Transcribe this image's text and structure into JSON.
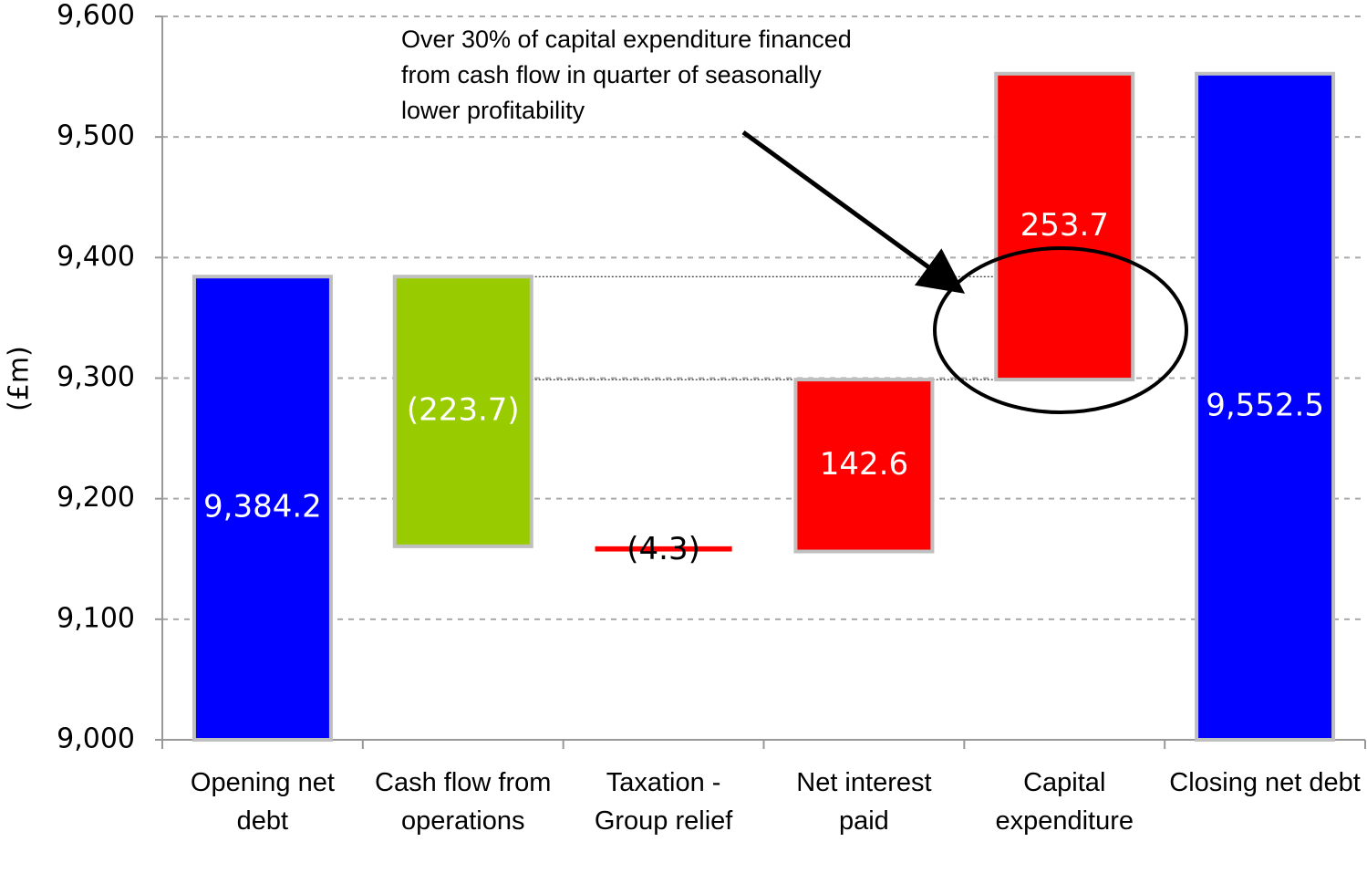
{
  "chart_data": {
    "type": "waterfall",
    "y_label": "(£m)",
    "annotation": "Over 30% of capital expenditure financed from cash flow in quarter of seasonally lower profitability",
    "categories": [
      "Opening net debt",
      "Cash flow from operations",
      "Taxation - Group relief",
      "Net interest paid",
      "Capital expenditure",
      "Closing net debt"
    ],
    "values": [
      9384.2,
      -223.7,
      -4.3,
      142.6,
      253.7,
      9552.5
    ],
    "value_labels": [
      "9,384.2",
      "(223.7)",
      "(4.3)",
      "142.6",
      "253.7",
      "9,552.5"
    ],
    "measure": [
      "total",
      "delta",
      "delta",
      "delta",
      "delta",
      "total"
    ],
    "colors": [
      "#0000ff",
      "#99cc00",
      "#ff0000",
      "#ff0000",
      "#ff0000",
      "#0000ff"
    ],
    "ylim": [
      9000,
      9600
    ],
    "yticks": [
      {
        "value": 9000,
        "label": "9,000"
      },
      {
        "value": 9100,
        "label": "9,100"
      },
      {
        "value": 9200,
        "label": "9,200"
      },
      {
        "value": 9300,
        "label": "9,300"
      },
      {
        "value": 9400,
        "label": "9,400"
      },
      {
        "value": 9500,
        "label": "9,500"
      },
      {
        "value": 9600,
        "label": "9,600"
      }
    ],
    "grid": true
  }
}
